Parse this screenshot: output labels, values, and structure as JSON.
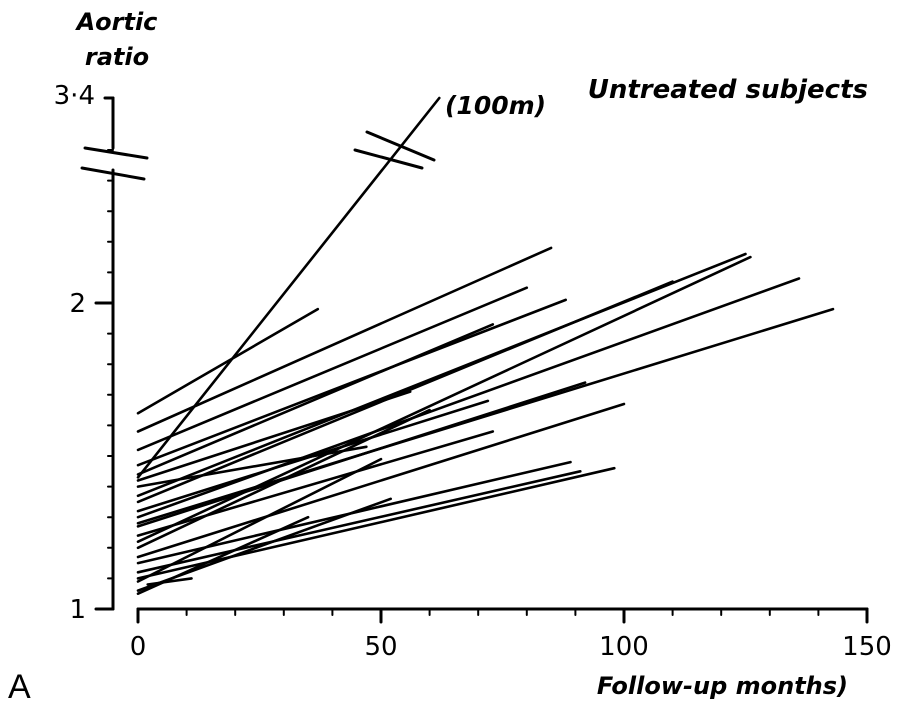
{
  "chart_data": {
    "type": "line",
    "panel_label": "A",
    "title": "Untreated subjects",
    "xlabel": "Follow-up months)",
    "ylabel_line1": "Aortic",
    "ylabel_line2": "ratio",
    "xlim": [
      0,
      150
    ],
    "ylim": [
      1,
      2.6
    ],
    "x_ticks": [
      0,
      50,
      100,
      150
    ],
    "x_tick_labels": [
      "0",
      "50",
      "100",
      "150"
    ],
    "y_ticks": [
      1,
      2
    ],
    "y_tick_labels": [
      "1",
      "2"
    ],
    "y_break_label": "3·4",
    "y_break_value": 3.4,
    "annotation": "(100m)",
    "series": [
      {
        "values": [
          [
            0,
            1.43
          ],
          [
            62,
            3.4
          ]
        ],
        "note": "(100m)"
      },
      {
        "values": [
          [
            0,
            1.64
          ],
          [
            37,
            1.98
          ]
        ]
      },
      {
        "values": [
          [
            0,
            1.58
          ],
          [
            85,
            2.18
          ]
        ]
      },
      {
        "values": [
          [
            0,
            1.52
          ],
          [
            80,
            2.05
          ]
        ]
      },
      {
        "values": [
          [
            0,
            1.47
          ],
          [
            88,
            2.01
          ]
        ]
      },
      {
        "values": [
          [
            0,
            1.44
          ],
          [
            73,
            1.93
          ]
        ]
      },
      {
        "values": [
          [
            0,
            1.42
          ],
          [
            56,
            1.71
          ]
        ]
      },
      {
        "values": [
          [
            0,
            1.4
          ],
          [
            47,
            1.53
          ]
        ]
      },
      {
        "values": [
          [
            0,
            1.37
          ],
          [
            125,
            2.16
          ]
        ]
      },
      {
        "values": [
          [
            0,
            1.35
          ],
          [
            110,
            2.07
          ]
        ]
      },
      {
        "values": [
          [
            0,
            1.32
          ],
          [
            72,
            1.68
          ]
        ]
      },
      {
        "values": [
          [
            0,
            1.3
          ],
          [
            136,
            2.08
          ]
        ]
      },
      {
        "values": [
          [
            0,
            1.28
          ],
          [
            143,
            1.98
          ]
        ]
      },
      {
        "values": [
          [
            0,
            1.27
          ],
          [
            92,
            1.74
          ]
        ]
      },
      {
        "values": [
          [
            0,
            1.24
          ],
          [
            73,
            1.58
          ]
        ]
      },
      {
        "values": [
          [
            0,
            1.22
          ],
          [
            126,
            2.15
          ]
        ]
      },
      {
        "values": [
          [
            0,
            1.2
          ],
          [
            60,
            1.65
          ]
        ]
      },
      {
        "values": [
          [
            0,
            1.17
          ],
          [
            100,
            1.67
          ]
        ]
      },
      {
        "values": [
          [
            0,
            1.15
          ],
          [
            89,
            1.48
          ]
        ]
      },
      {
        "values": [
          [
            0,
            1.12
          ],
          [
            91,
            1.45
          ]
        ]
      },
      {
        "values": [
          [
            0,
            1.1
          ],
          [
            98,
            1.46
          ]
        ]
      },
      {
        "values": [
          [
            0,
            1.09
          ],
          [
            50,
            1.49
          ]
        ]
      },
      {
        "values": [
          [
            0,
            1.06
          ],
          [
            52,
            1.36
          ]
        ]
      },
      {
        "values": [
          [
            0,
            1.05
          ],
          [
            35,
            1.3
          ]
        ]
      },
      {
        "values": [
          [
            2,
            1.08
          ],
          [
            11,
            1.1
          ]
        ]
      }
    ]
  }
}
